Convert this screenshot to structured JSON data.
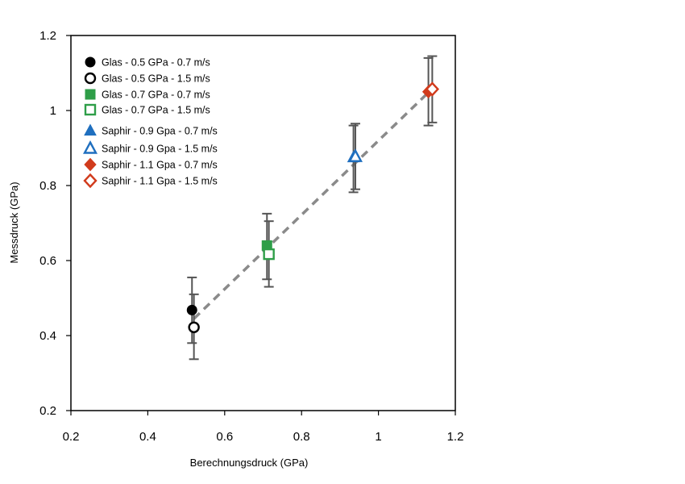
{
  "chart_data": {
    "type": "scatter",
    "xlabel": "Berechnungsdruck (GPa)",
    "ylabel": "Messdruck  (GPa)",
    "xlim": [
      0.2,
      1.2
    ],
    "ylim": [
      0.2,
      1.2
    ],
    "x_ticks": [
      "0.2",
      "0.4",
      "0.6",
      "0.8",
      "1",
      "1.2"
    ],
    "y_ticks": [
      "0.2",
      "0.4",
      "0.6",
      "0.8",
      "1",
      "1.2"
    ],
    "grid": false,
    "legend_position": "top-left",
    "series": [
      {
        "name": "Glas - 0.5 GPa - 0.7 m/s",
        "marker": "circle",
        "filled": true,
        "color": "#000000",
        "x": 0.515,
        "y": 0.468,
        "err_low": 0.38,
        "err_high": 0.555
      },
      {
        "name": "Glas - 0.5 GPa - 1.5 m/s",
        "marker": "circle",
        "filled": false,
        "color": "#000000",
        "x": 0.52,
        "y": 0.422,
        "err_low": 0.337,
        "err_high": 0.51
      },
      {
        "name": "Glas - 0.7 GPa - 0.7 m/s",
        "marker": "square",
        "filled": true,
        "color": "#2e9e48",
        "x": 0.71,
        "y": 0.64,
        "err_low": 0.55,
        "err_high": 0.725
      },
      {
        "name": "Glas - 0.7 GPa - 1.5 m/s",
        "marker": "square",
        "filled": false,
        "color": "#2e9e48",
        "x": 0.715,
        "y": 0.617,
        "err_low": 0.53,
        "err_high": 0.705
      },
      {
        "name": "Saphir - 0.9 Gpa - 0.7 m/s",
        "marker": "triangle",
        "filled": true,
        "color": "#1f6fbf",
        "x": 0.935,
        "y": 0.875,
        "err_low": 0.782,
        "err_high": 0.96
      },
      {
        "name": "Saphir - 0.9 Gpa - 1.5 m/s",
        "marker": "triangle",
        "filled": false,
        "color": "#1f6fbf",
        "x": 0.94,
        "y": 0.877,
        "err_low": 0.79,
        "err_high": 0.965
      },
      {
        "name": "Saphir - 1.1 Gpa - 0.7 m/s",
        "marker": "diamond",
        "filled": true,
        "color": "#d13b1c",
        "x": 1.13,
        "y": 1.05,
        "err_low": 0.96,
        "err_high": 1.14
      },
      {
        "name": "Saphir - 1.1 Gpa - 1.5 m/s",
        "marker": "diamond",
        "filled": false,
        "color": "#d13b1c",
        "x": 1.14,
        "y": 1.057,
        "err_low": 0.968,
        "err_high": 1.145
      }
    ],
    "trendline": {
      "style": "dashed",
      "color": "#8a8a8a",
      "x": [
        0.52,
        1.14
      ],
      "y": [
        0.445,
        1.058
      ]
    },
    "error_bar_color": "#555555"
  }
}
